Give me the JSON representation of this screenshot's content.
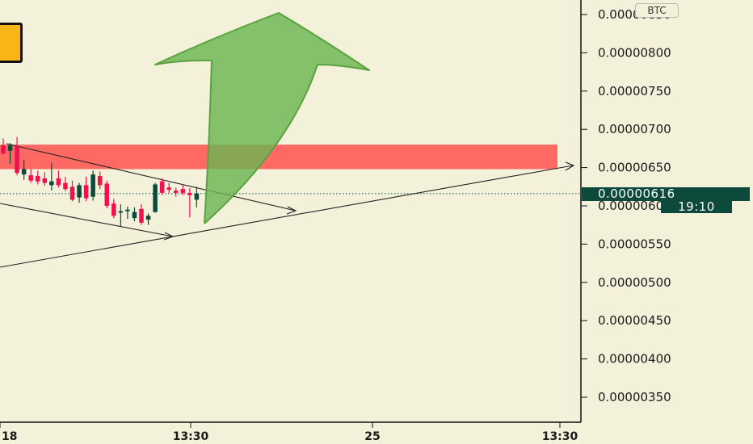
{
  "chart_data": {
    "type": "candlestick",
    "currency": "BTC",
    "y_axis": {
      "ticks": [
        "0.00000850",
        "0.00000800",
        "0.00000750",
        "0.00000700",
        "0.00000650",
        "0.00000600",
        "0.00000550",
        "0.00000500",
        "0.00000450",
        "0.00000400",
        "0.00000350"
      ],
      "tick_values": [
        850,
        800,
        750,
        700,
        650,
        600,
        550,
        500,
        450,
        400,
        350
      ],
      "unit_scale": "1e-8 BTC"
    },
    "x_axis": {
      "labels": [
        "18",
        "13:30",
        "25",
        "13:30"
      ]
    },
    "last_price": "0.00000616",
    "last_price_value": 616,
    "countdown": "19:10",
    "resistance_zone": {
      "from": 648,
      "to": 680,
      "color": "#ff5a57"
    },
    "colors": {
      "up": "#0d4a3c",
      "down": "#f0114f",
      "arrow": "#6db552",
      "background": "#f3f1da"
    },
    "candles": [
      {
        "o": 679,
        "h": 688,
        "l": 668,
        "c": 668
      },
      {
        "o": 672,
        "h": 682,
        "l": 655,
        "c": 679
      },
      {
        "o": 678,
        "h": 690,
        "l": 640,
        "c": 643
      },
      {
        "o": 641,
        "h": 660,
        "l": 634,
        "c": 648
      },
      {
        "o": 640,
        "h": 648,
        "l": 630,
        "c": 633
      },
      {
        "o": 639,
        "h": 646,
        "l": 628,
        "c": 632
      },
      {
        "o": 636,
        "h": 644,
        "l": 626,
        "c": 630
      },
      {
        "o": 627,
        "h": 656,
        "l": 620,
        "c": 632
      },
      {
        "o": 636,
        "h": 646,
        "l": 624,
        "c": 627
      },
      {
        "o": 630,
        "h": 638,
        "l": 619,
        "c": 622
      },
      {
        "o": 625,
        "h": 633,
        "l": 606,
        "c": 608
      },
      {
        "o": 611,
        "h": 630,
        "l": 604,
        "c": 627
      },
      {
        "o": 627,
        "h": 638,
        "l": 606,
        "c": 610
      },
      {
        "o": 612,
        "h": 646,
        "l": 607,
        "c": 641
      },
      {
        "o": 639,
        "h": 645,
        "l": 622,
        "c": 627
      },
      {
        "o": 629,
        "h": 633,
        "l": 597,
        "c": 600
      },
      {
        "o": 603,
        "h": 609,
        "l": 584,
        "c": 587
      },
      {
        "o": 591,
        "h": 602,
        "l": 573,
        "c": 593
      },
      {
        "o": 593,
        "h": 599,
        "l": 583,
        "c": 595
      },
      {
        "o": 584,
        "h": 598,
        "l": 580,
        "c": 592
      },
      {
        "o": 596,
        "h": 602,
        "l": 575,
        "c": 578
      },
      {
        "o": 582,
        "h": 590,
        "l": 575,
        "c": 587
      },
      {
        "o": 592,
        "h": 630,
        "l": 591,
        "c": 628
      },
      {
        "o": 632,
        "h": 636,
        "l": 614,
        "c": 617
      },
      {
        "o": 624,
        "h": 630,
        "l": 617,
        "c": 621
      },
      {
        "o": 620,
        "h": 624,
        "l": 612,
        "c": 617
      },
      {
        "o": 622,
        "h": 628,
        "l": 614,
        "c": 617
      },
      {
        "o": 617,
        "h": 623,
        "l": 585,
        "c": 614
      },
      {
        "o": 608,
        "h": 625,
        "l": 598,
        "c": 616
      }
    ]
  }
}
